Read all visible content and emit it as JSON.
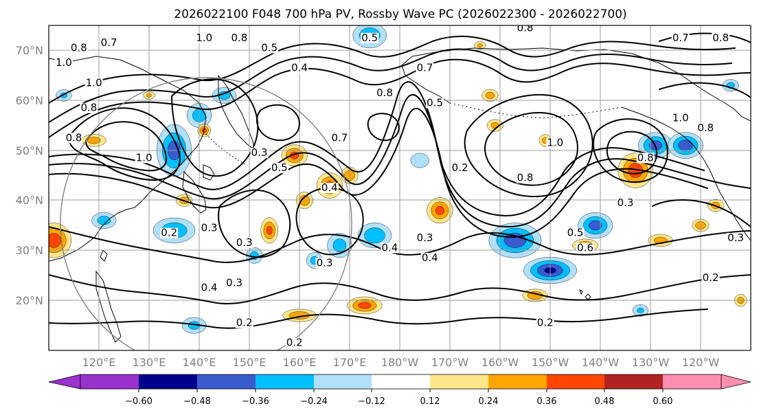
{
  "title": "2026022100 F048 700 hPa PV, Rossby Wave PC (2026022300 - 2026022700)",
  "map": {
    "projection": "PlateCarree (dateline centred)",
    "lon_range": [
      111,
      251
    ],
    "lat_range": [
      10,
      75
    ],
    "coastlines": true,
    "gridlines": true
  },
  "lat_labels": [
    "20°N",
    "30°N",
    "40°N",
    "50°N",
    "60°N",
    "70°N"
  ],
  "lon_labels": [
    "120°E",
    "130°E",
    "140°E",
    "150°E",
    "160°E",
    "170°E",
    "180°W",
    "170°W",
    "160°W",
    "150°W",
    "140°W",
    "130°W",
    "120°W"
  ],
  "colorbar": {
    "extend": "both",
    "ticks": [
      "−0.60",
      "−0.48",
      "−0.36",
      "−0.24",
      "−0.12",
      "0.12",
      "0.24",
      "0.36",
      "0.48",
      "0.60"
    ],
    "colors": [
      "#9932cc",
      "#00008b",
      "#3a5bd0",
      "#00bfff",
      "#b0e0fa",
      "#ffffff",
      "#ffe68a",
      "#ffa500",
      "#ff4500",
      "#b22222",
      "#ff8fb0"
    ]
  },
  "contour_labels": [
    {
      "text": "0.7",
      "lon": 123,
      "lat": 71
    },
    {
      "text": "0.8",
      "lon": 117,
      "lat": 70
    },
    {
      "text": "1.0",
      "lon": 114,
      "lat": 67
    },
    {
      "text": "1.0",
      "lon": 142,
      "lat": 72
    },
    {
      "text": "0.8",
      "lon": 149,
      "lat": 72
    },
    {
      "text": "0.5",
      "lon": 155,
      "lat": 70
    },
    {
      "text": "0.4",
      "lon": 161,
      "lat": 66
    },
    {
      "text": "0.5",
      "lon": 175,
      "lat": 72
    },
    {
      "text": "0.7",
      "lon": 186,
      "lat": 66
    },
    {
      "text": "0.8",
      "lon": 178,
      "lat": 61
    },
    {
      "text": "0.5",
      "lon": 188,
      "lat": 59
    },
    {
      "text": "0.2",
      "lon": 193,
      "lat": 46
    },
    {
      "text": "0.7",
      "lon": 169,
      "lat": 52
    },
    {
      "text": "0.3",
      "lon": 153,
      "lat": 49
    },
    {
      "text": "0.5",
      "lon": 157,
      "lat": 46
    },
    {
      "text": "0.4",
      "lon": 167,
      "lat": 42
    },
    {
      "text": "1.0",
      "lon": 130,
      "lat": 48
    },
    {
      "text": "1.0",
      "lon": 120,
      "lat": 63
    },
    {
      "text": "0.2",
      "lon": 135,
      "lat": 33
    },
    {
      "text": "0.3",
      "lon": 143,
      "lat": 34
    },
    {
      "text": "0.3",
      "lon": 150,
      "lat": 31
    },
    {
      "text": "0.3",
      "lon": 148,
      "lat": 23
    },
    {
      "text": "0.4",
      "lon": 143,
      "lat": 22
    },
    {
      "text": "0.3",
      "lon": 166,
      "lat": 27
    },
    {
      "text": "0.2",
      "lon": 150,
      "lat": 15
    },
    {
      "text": "0.2",
      "lon": 160,
      "lat": 11
    },
    {
      "text": "0.3",
      "lon": 186,
      "lat": 32
    },
    {
      "text": "0.4",
      "lon": 187,
      "lat": 28
    },
    {
      "text": "0.4",
      "lon": 179,
      "lat": 30
    },
    {
      "text": "0.2",
      "lon": 210,
      "lat": 15
    },
    {
      "text": "1.0",
      "lon": 212,
      "lat": 51
    },
    {
      "text": "0.8",
      "lon": 206,
      "lat": 44
    },
    {
      "text": "0.5",
      "lon": 216,
      "lat": 33
    },
    {
      "text": "0.6",
      "lon": 218,
      "lat": 30
    },
    {
      "text": "0.3",
      "lon": 226,
      "lat": 39
    },
    {
      "text": "0.8",
      "lon": 230,
      "lat": 48
    },
    {
      "text": "1.0",
      "lon": 237,
      "lat": 56
    },
    {
      "text": "0.8",
      "lon": 242,
      "lat": 54
    },
    {
      "text": "0.2",
      "lon": 243,
      "lat": 24
    },
    {
      "text": "0.3",
      "lon": 248,
      "lat": 32
    },
    {
      "text": "0.7",
      "lon": 237,
      "lat": 72
    },
    {
      "text": "0.8",
      "lon": 245,
      "lat": 72
    },
    {
      "text": "0.8",
      "lon": 116,
      "lat": 52
    },
    {
      "text": "0.8",
      "lon": 119,
      "lat": 58
    },
    {
      "text": "0.8",
      "lon": 206,
      "lat": 74
    }
  ],
  "shaded_anomalies": [
    {
      "sign": "neg",
      "lon": 136,
      "lat": 50,
      "rx": 4,
      "ry": 6,
      "level": 0.42
    },
    {
      "sign": "neg",
      "lon": 141,
      "lat": 57,
      "rx": 3,
      "ry": 3,
      "level": 0.3
    },
    {
      "sign": "neg",
      "lon": 146,
      "lat": 61,
      "rx": 3,
      "ry": 2,
      "level": 0.28
    },
    {
      "sign": "neg",
      "lon": 136,
      "lat": 34,
      "rx": 5,
      "ry": 3,
      "level": 0.35
    },
    {
      "sign": "neg",
      "lon": 122,
      "lat": 36,
      "rx": 3,
      "ry": 2,
      "level": 0.3
    },
    {
      "sign": "neg",
      "lon": 185,
      "lat": 48,
      "rx": 2.5,
      "ry": 2,
      "level": 0.2
    },
    {
      "sign": "neg",
      "lon": 176,
      "lat": 33,
      "rx": 4,
      "ry": 3,
      "level": 0.35
    },
    {
      "sign": "neg",
      "lon": 164,
      "lat": 28,
      "rx": 2,
      "ry": 2,
      "level": 0.28
    },
    {
      "sign": "neg",
      "lon": 169,
      "lat": 31,
      "rx": 3,
      "ry": 3,
      "level": 0.3
    },
    {
      "sign": "neg",
      "lon": 204,
      "lat": 32,
      "rx": 6,
      "ry": 4,
      "level": 0.45
    },
    {
      "sign": "neg",
      "lon": 211,
      "lat": 26,
      "rx": 6,
      "ry": 3,
      "level": 0.5
    },
    {
      "sign": "neg",
      "lon": 220,
      "lat": 35,
      "rx": 4,
      "ry": 3,
      "level": 0.42
    },
    {
      "sign": "neg",
      "lon": 232,
      "lat": 51,
      "rx": 4,
      "ry": 3,
      "level": 0.42
    },
    {
      "sign": "neg",
      "lon": 238,
      "lat": 51,
      "rx": 4,
      "ry": 3,
      "level": 0.45
    },
    {
      "sign": "neg",
      "lon": 175,
      "lat": 73,
      "rx": 4,
      "ry": 3,
      "level": 0.35
    },
    {
      "sign": "neg",
      "lon": 140,
      "lat": 15,
      "rx": 3,
      "ry": 2,
      "level": 0.28
    },
    {
      "sign": "neg",
      "lon": 152,
      "lat": 29,
      "rx": 2,
      "ry": 2,
      "level": 0.28
    },
    {
      "sign": "neg",
      "lon": 114,
      "lat": 61,
      "rx": 2,
      "ry": 1.5,
      "level": 0.25
    },
    {
      "sign": "neg",
      "lon": 229,
      "lat": 18,
      "rx": 2,
      "ry": 1.5,
      "level": 0.25
    },
    {
      "sign": "neg",
      "lon": 247,
      "lat": 63,
      "rx": 2,
      "ry": 1.5,
      "level": 0.28
    },
    {
      "sign": "pos",
      "lon": 112,
      "lat": 32,
      "rx": 4,
      "ry": 4,
      "level": 0.45
    },
    {
      "sign": "pos",
      "lon": 160,
      "lat": 49,
      "rx": 3,
      "ry": 2.5,
      "level": 0.4
    },
    {
      "sign": "pos",
      "lon": 167,
      "lat": 43,
      "rx": 3,
      "ry": 3,
      "level": 0.4
    },
    {
      "sign": "pos",
      "lon": 171,
      "lat": 45,
      "rx": 2,
      "ry": 2,
      "level": 0.35
    },
    {
      "sign": "pos",
      "lon": 155,
      "lat": 34,
      "rx": 2,
      "ry": 3,
      "level": 0.4
    },
    {
      "sign": "pos",
      "lon": 162,
      "lat": 40,
      "rx": 2,
      "ry": 2,
      "level": 0.35
    },
    {
      "sign": "pos",
      "lon": 174,
      "lat": 19,
      "rx": 4,
      "ry": 2,
      "level": 0.42
    },
    {
      "sign": "pos",
      "lon": 161,
      "lat": 17,
      "rx": 4,
      "ry": 1.5,
      "level": 0.35
    },
    {
      "sign": "pos",
      "lon": 189,
      "lat": 38,
      "rx": 3,
      "ry": 3,
      "level": 0.4
    },
    {
      "sign": "pos",
      "lon": 218,
      "lat": 31,
      "rx": 3,
      "ry": 1.5,
      "level": 0.38
    },
    {
      "sign": "pos",
      "lon": 228,
      "lat": 46,
      "rx": 4,
      "ry": 4,
      "level": 0.45
    },
    {
      "sign": "pos",
      "lon": 208,
      "lat": 21,
      "rx": 3,
      "ry": 1.5,
      "level": 0.35
    },
    {
      "sign": "pos",
      "lon": 142,
      "lat": 54,
      "rx": 1.5,
      "ry": 1.5,
      "level": 0.4
    },
    {
      "sign": "pos",
      "lon": 138,
      "lat": 40,
      "rx": 2,
      "ry": 1.5,
      "level": 0.3
    },
    {
      "sign": "pos",
      "lon": 241,
      "lat": 35,
      "rx": 2,
      "ry": 1.5,
      "level": 0.35
    },
    {
      "sign": "pos",
      "lon": 244,
      "lat": 39,
      "rx": 2,
      "ry": 1.5,
      "level": 0.3
    },
    {
      "sign": "pos",
      "lon": 249,
      "lat": 20,
      "rx": 1.5,
      "ry": 1.5,
      "level": 0.3
    },
    {
      "sign": "pos",
      "lon": 199,
      "lat": 61,
      "rx": 2,
      "ry": 1.5,
      "level": 0.3
    },
    {
      "sign": "pos",
      "lon": 131,
      "lat": 61,
      "rx": 1.5,
      "ry": 1,
      "level": 0.25
    },
    {
      "sign": "pos",
      "lon": 120,
      "lat": 52,
      "rx": 3,
      "ry": 1.5,
      "level": 0.3
    },
    {
      "sign": "pos",
      "lon": 210,
      "lat": 52,
      "rx": 1.5,
      "ry": 1.5,
      "level": 0.28
    },
    {
      "sign": "pos",
      "lon": 233,
      "lat": 32,
      "rx": 3,
      "ry": 1.5,
      "level": 0.3
    },
    {
      "sign": "pos",
      "lon": 200,
      "lat": 55,
      "rx": 2,
      "ry": 1.5,
      "level": 0.28
    },
    {
      "sign": "pos",
      "lon": 197,
      "lat": 71,
      "rx": 1.5,
      "ry": 1,
      "level": 0.25
    }
  ]
}
